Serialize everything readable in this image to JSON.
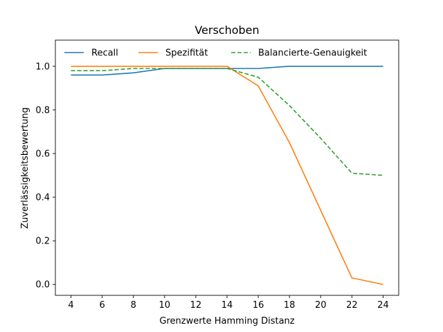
{
  "chart_data": {
    "type": "line",
    "title": "Verschoben",
    "xlabel": "Grenzwerte Hamming Distanz",
    "ylabel": "Zuverlässigkeitsbewertung",
    "x": [
      4,
      6,
      8,
      10,
      12,
      14,
      16,
      18,
      20,
      22,
      24
    ],
    "xlim": [
      3,
      25
    ],
    "ylim": [
      -0.05,
      1.12
    ],
    "xticks": [
      4,
      6,
      8,
      10,
      12,
      14,
      16,
      18,
      20,
      22,
      24
    ],
    "yticks": [
      0.0,
      0.2,
      0.4,
      0.6,
      0.8,
      1.0
    ],
    "ytick_labels": [
      "0.0",
      "0.2",
      "0.4",
      "0.6",
      "0.8",
      "1.0"
    ],
    "grid": false,
    "legend_position": "top",
    "series": [
      {
        "name": "Recall",
        "color": "#1f77b4",
        "dash": "solid",
        "values": [
          0.96,
          0.96,
          0.97,
          0.99,
          0.99,
          0.99,
          0.99,
          1.0,
          1.0,
          1.0,
          1.0
        ]
      },
      {
        "name": "Spezifität",
        "color": "#ff7f0e",
        "dash": "solid",
        "values": [
          1.0,
          1.0,
          1.0,
          1.0,
          1.0,
          1.0,
          0.91,
          0.65,
          0.34,
          0.03,
          0.0
        ]
      },
      {
        "name": "Balancierte-Genauigkeit",
        "color": "#2ca02c",
        "dash": "dashed",
        "values": [
          0.98,
          0.98,
          0.99,
          0.99,
          0.99,
          0.99,
          0.95,
          0.82,
          0.67,
          0.51,
          0.5
        ]
      }
    ]
  }
}
